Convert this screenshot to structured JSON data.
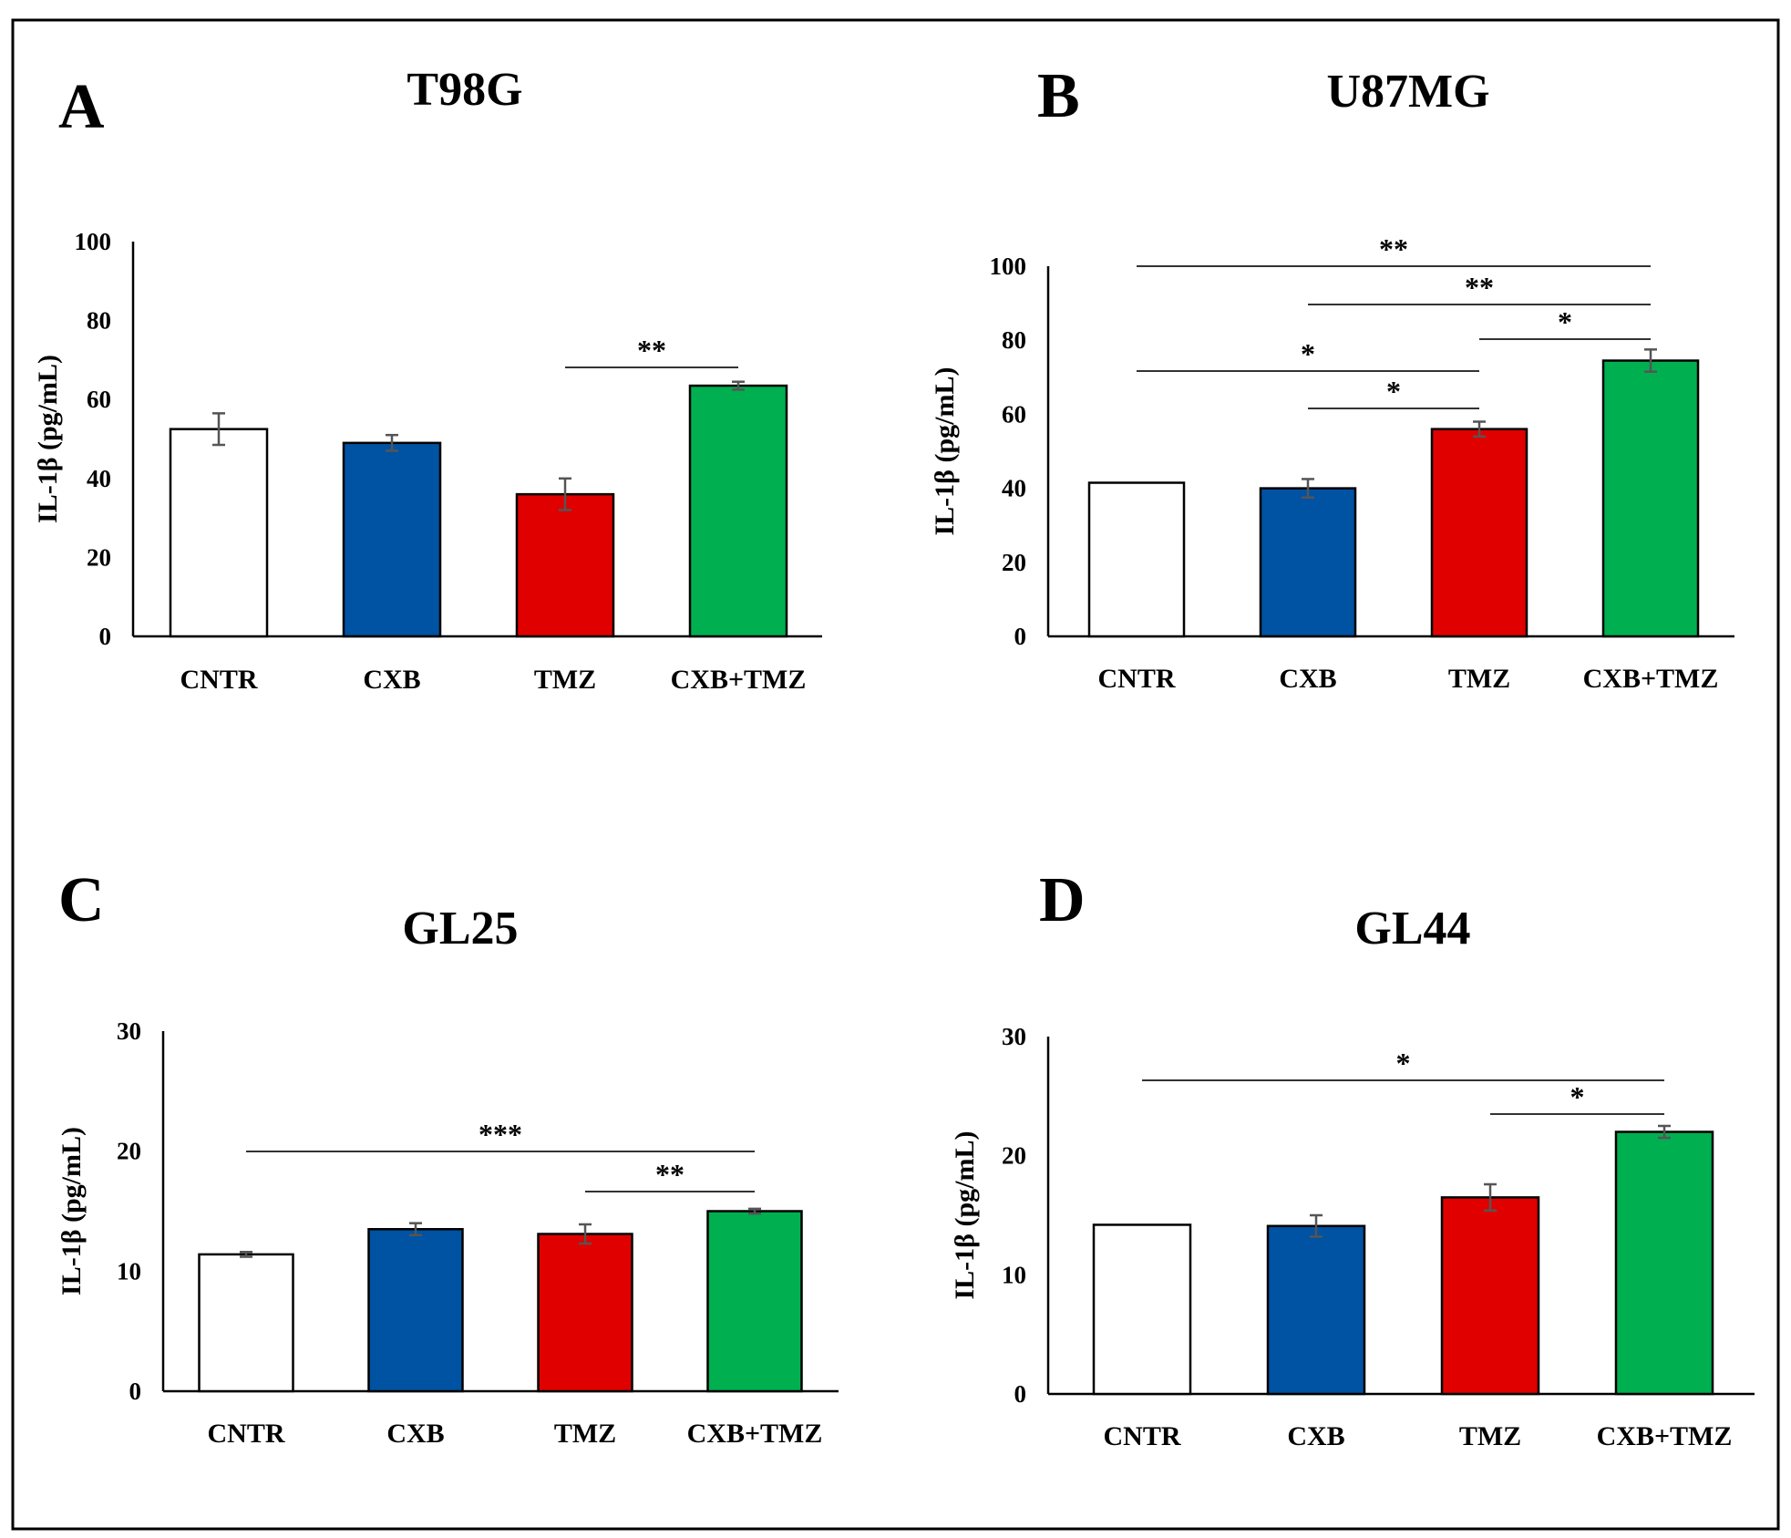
{
  "chart_data": [
    {
      "panel": "A",
      "type": "bar",
      "title": "T98G",
      "ylabel": "IL-1β (pg/mL)",
      "xlabel": "",
      "ylim": [
        0,
        100
      ],
      "yticks": [
        0,
        20,
        40,
        60,
        80,
        100
      ],
      "categories": [
        "CNTR",
        "CXB",
        "TMZ",
        "CXB+TMZ"
      ],
      "values": [
        52.5,
        49,
        36,
        63.5
      ],
      "errors": [
        4,
        2,
        4,
        1
      ],
      "colors": [
        "#ffffff",
        "#0052a2",
        "#e00000",
        "#00b050"
      ],
      "significance": [
        {
          "from": 2,
          "to": 3,
          "label": "**",
          "level": 1
        }
      ]
    },
    {
      "panel": "B",
      "type": "bar",
      "title": "U87MG",
      "ylabel": "IL-1β (pg/mL)",
      "xlabel": "",
      "ylim": [
        0,
        100
      ],
      "yticks": [
        0,
        20,
        40,
        60,
        80,
        100
      ],
      "categories": [
        "CNTR",
        "CXB",
        "TMZ",
        "CXB+TMZ"
      ],
      "values": [
        41.5,
        40,
        56,
        74.5
      ],
      "errors": [
        0,
        2.5,
        2,
        3
      ],
      "colors": [
        "#ffffff",
        "#0052a2",
        "#e00000",
        "#00b050"
      ],
      "significance": [
        {
          "from": 1,
          "to": 2,
          "label": "*",
          "level": 1
        },
        {
          "from": 0,
          "to": 2,
          "label": "*",
          "level": 2
        },
        {
          "from": 2,
          "to": 3,
          "label": "*",
          "level": 3
        },
        {
          "from": 1,
          "to": 3,
          "label": "**",
          "level": 4
        },
        {
          "from": 0,
          "to": 3,
          "label": "**",
          "level": 5
        }
      ]
    },
    {
      "panel": "C",
      "type": "bar",
      "title": "GL25",
      "ylabel": "IL-1β (pg/mL)",
      "xlabel": "",
      "ylim": [
        0,
        30
      ],
      "yticks": [
        0,
        10,
        20,
        30
      ],
      "categories": [
        "CNTR",
        "CXB",
        "TMZ",
        "CXB+TMZ"
      ],
      "values": [
        11.4,
        13.5,
        13.1,
        15
      ],
      "errors": [
        0.2,
        0.5,
        0.8,
        0.2
      ],
      "colors": [
        "#ffffff",
        "#0052a2",
        "#e00000",
        "#00b050"
      ],
      "significance": [
        {
          "from": 2,
          "to": 3,
          "label": "**",
          "level": 1
        },
        {
          "from": 0,
          "to": 3,
          "label": "***",
          "level": 2
        }
      ]
    },
    {
      "panel": "D",
      "type": "bar",
      "title": "GL44",
      "ylabel": "IL-1β (pg/mL)",
      "xlabel": "",
      "ylim": [
        0,
        30
      ],
      "yticks": [
        0,
        10,
        20,
        30
      ],
      "categories": [
        "CNTR",
        "CXB",
        "TMZ",
        "CXB+TMZ"
      ],
      "values": [
        14.2,
        14.1,
        16.5,
        22
      ],
      "errors": [
        0,
        0.9,
        1.1,
        0.5
      ],
      "colors": [
        "#ffffff",
        "#0052a2",
        "#e00000",
        "#00b050"
      ],
      "significance": [
        {
          "from": 2,
          "to": 3,
          "label": "*",
          "level": 1
        },
        {
          "from": 0,
          "to": 3,
          "label": "*",
          "level": 2
        }
      ]
    }
  ]
}
